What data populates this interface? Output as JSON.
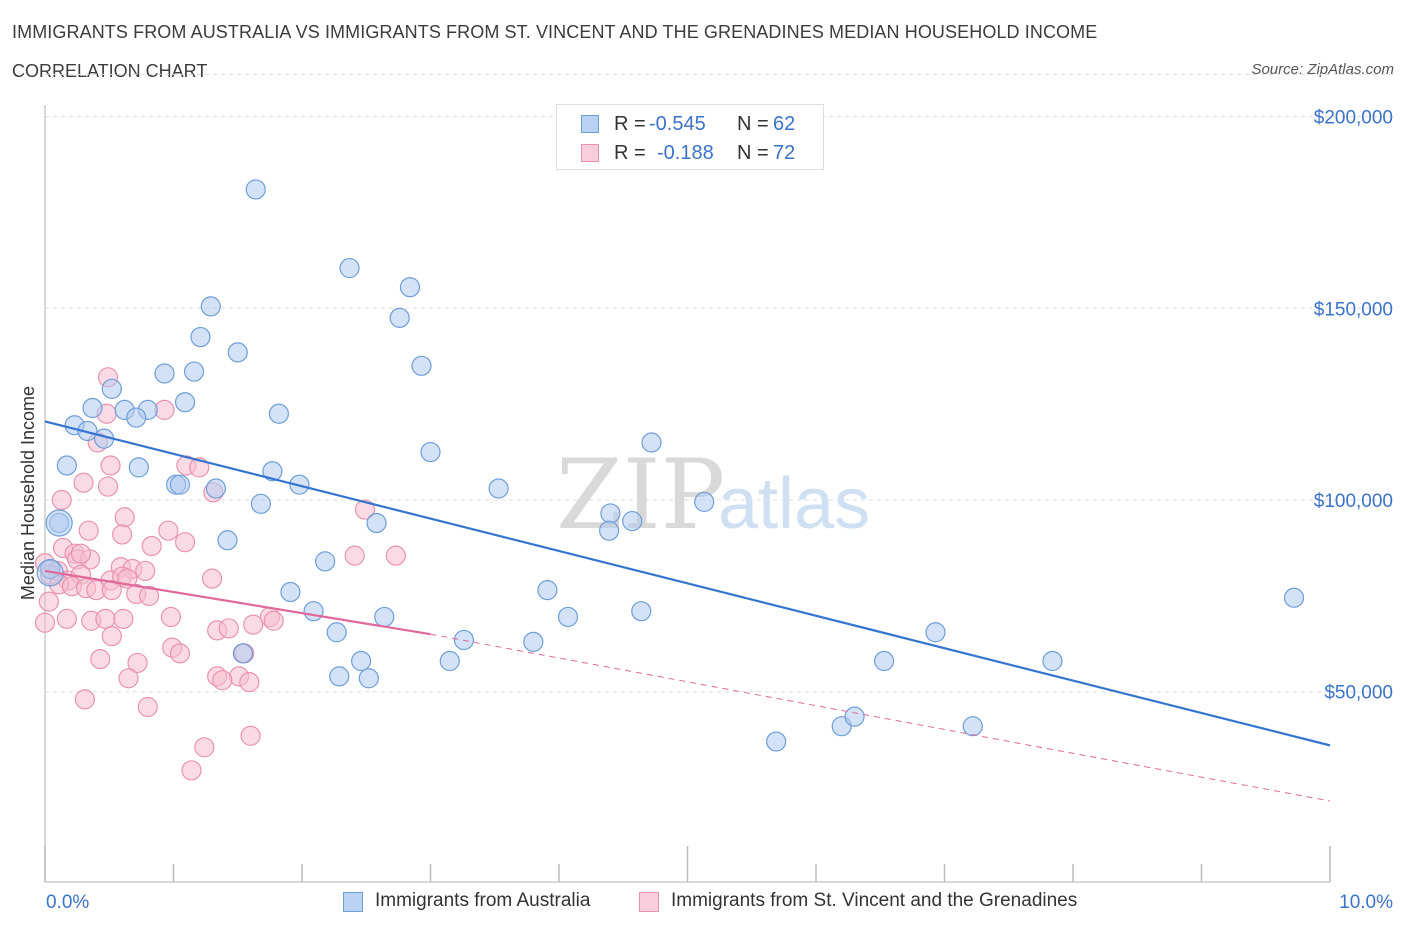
{
  "title": "IMMIGRANTS FROM AUSTRALIA VS IMMIGRANTS FROM ST. VINCENT AND THE GRENADINES MEDIAN HOUSEHOLD INCOME",
  "subtitle": "CORRELATION CHART",
  "source": "Source: ZipAtlas.com",
  "watermark": {
    "zip": "ZIP",
    "atlas": "atlas"
  },
  "legend": {
    "series1": {
      "r_label": "R =",
      "r_value": "-0.545",
      "n_label": "N =",
      "n_value": "62"
    },
    "series2": {
      "r_label": "R =",
      "r_value": "-0.188",
      "n_label": "N =",
      "n_value": "72"
    }
  },
  "bottom_legend": {
    "series1": "Immigrants from Australia",
    "series2": "Immigrants from St. Vincent and the Grenadines"
  },
  "colors": {
    "blue_fill": "#aecbf0",
    "blue_stroke": "#6f9ed8",
    "blue_line": "#3575d0",
    "pink_fill": "#f6bed0",
    "pink_stroke": "#e993b0",
    "pink_line": "#e0699a",
    "tick_text": "#3b73c8",
    "grid": "#dddddd"
  },
  "chart_data": {
    "type": "scatter",
    "ylabel": "Median Household Income",
    "x_tick_labels": [
      "0.0%",
      "10.0%"
    ],
    "y_tick_labels": [
      "$50,000",
      "$100,000",
      "$150,000",
      "$200,000"
    ],
    "xlim": [
      0,
      10
    ],
    "ylim": [
      0,
      200000
    ],
    "y_ticks": [
      50000,
      100000,
      150000,
      200000
    ],
    "grid": true,
    "legend_position": "top-center",
    "series": [
      {
        "name": "Immigrants from Australia",
        "color": "blue",
        "trend": {
          "x": [
            0,
            10
          ],
          "y": [
            120500,
            36000
          ],
          "dashed_extension": false
        },
        "points": [
          [
            1.64,
            181000
          ],
          [
            2.37,
            160500
          ],
          [
            2.84,
            155500
          ],
          [
            2.76,
            147500
          ],
          [
            1.29,
            150500
          ],
          [
            1.21,
            142500
          ],
          [
            1.5,
            138500
          ],
          [
            2.93,
            135000
          ],
          [
            1.16,
            133500
          ],
          [
            0.93,
            133000
          ],
          [
            0.52,
            129000
          ],
          [
            0.37,
            124000
          ],
          [
            0.62,
            123500
          ],
          [
            0.8,
            123500
          ],
          [
            0.71,
            121500
          ],
          [
            1.09,
            125500
          ],
          [
            1.82,
            122500
          ],
          [
            0.23,
            119500
          ],
          [
            0.33,
            118000
          ],
          [
            0.46,
            116000
          ],
          [
            4.72,
            115000
          ],
          [
            3.0,
            112500
          ],
          [
            0.17,
            109000
          ],
          [
            0.73,
            108500
          ],
          [
            1.77,
            107500
          ],
          [
            1.02,
            104000
          ],
          [
            1.05,
            104000
          ],
          [
            1.33,
            103000
          ],
          [
            1.98,
            104000
          ],
          [
            3.53,
            103000
          ],
          [
            1.68,
            99000
          ],
          [
            5.13,
            99500
          ],
          [
            4.4,
            96500
          ],
          [
            4.57,
            94500
          ],
          [
            2.58,
            94000
          ],
          [
            0.11,
            94000
          ],
          [
            4.39,
            92000
          ],
          [
            1.42,
            89500
          ],
          [
            2.18,
            84000
          ],
          [
            0.04,
            82000
          ],
          [
            1.91,
            76000
          ],
          [
            3.91,
            76500
          ],
          [
            9.72,
            74500
          ],
          [
            2.09,
            71000
          ],
          [
            4.07,
            69500
          ],
          [
            2.64,
            69500
          ],
          [
            4.64,
            71000
          ],
          [
            2.27,
            65500
          ],
          [
            6.93,
            65500
          ],
          [
            3.26,
            63500
          ],
          [
            3.8,
            63000
          ],
          [
            1.54,
            60000
          ],
          [
            3.15,
            58000
          ],
          [
            2.46,
            58000
          ],
          [
            6.53,
            58000
          ],
          [
            7.84,
            58000
          ],
          [
            2.29,
            54000
          ],
          [
            2.52,
            53500
          ],
          [
            5.69,
            37000
          ],
          [
            6.2,
            41000
          ],
          [
            6.3,
            43500
          ],
          [
            7.22,
            41000
          ]
        ]
      },
      {
        "name": "Immigrants from St. Vincent and the Grenadines",
        "color": "pink",
        "trend": {
          "x": [
            0,
            3.0
          ],
          "y": [
            81500,
            65000
          ],
          "dashed_to": [
            10,
            21500
          ]
        },
        "points": [
          [
            0.49,
            132000
          ],
          [
            0.93,
            123500
          ],
          [
            0.48,
            122500
          ],
          [
            0.41,
            115000
          ],
          [
            0.51,
            109000
          ],
          [
            1.1,
            109000
          ],
          [
            1.2,
            108500
          ],
          [
            0.3,
            104500
          ],
          [
            0.49,
            103500
          ],
          [
            1.31,
            102000
          ],
          [
            0.13,
            100000
          ],
          [
            2.49,
            97500
          ],
          [
            0.62,
            95500
          ],
          [
            0.34,
            92000
          ],
          [
            0.6,
            91000
          ],
          [
            0.96,
            92000
          ],
          [
            1.09,
            89000
          ],
          [
            0.83,
            88000
          ],
          [
            0.14,
            87500
          ],
          [
            0.23,
            86000
          ],
          [
            2.41,
            85500
          ],
          [
            2.73,
            85500
          ],
          [
            0.25,
            84500
          ],
          [
            0.35,
            84500
          ],
          [
            0.0,
            83500
          ],
          [
            0.1,
            81500
          ],
          [
            0.59,
            82500
          ],
          [
            0.68,
            82000
          ],
          [
            0.78,
            81500
          ],
          [
            0.04,
            80500
          ],
          [
            0.18,
            79000
          ],
          [
            0.28,
            80500
          ],
          [
            0.51,
            79000
          ],
          [
            0.6,
            80000
          ],
          [
            0.64,
            79500
          ],
          [
            1.3,
            79500
          ],
          [
            0.11,
            78000
          ],
          [
            0.21,
            77500
          ],
          [
            0.32,
            77000
          ],
          [
            0.4,
            76500
          ],
          [
            0.52,
            76500
          ],
          [
            0.71,
            75500
          ],
          [
            0.81,
            75000
          ],
          [
            0.03,
            73500
          ],
          [
            0.17,
            69000
          ],
          [
            0.36,
            68500
          ],
          [
            0.47,
            69000
          ],
          [
            0.61,
            69000
          ],
          [
            0.98,
            69500
          ],
          [
            1.75,
            69500
          ],
          [
            1.78,
            68500
          ],
          [
            0.0,
            68000
          ],
          [
            1.34,
            66000
          ],
          [
            0.52,
            64500
          ],
          [
            0.99,
            61500
          ],
          [
            1.05,
            60000
          ],
          [
            1.55,
            60000
          ],
          [
            0.43,
            58500
          ],
          [
            0.72,
            57500
          ],
          [
            1.34,
            54000
          ],
          [
            1.51,
            54000
          ],
          [
            0.65,
            53500
          ],
          [
            1.38,
            53000
          ],
          [
            1.59,
            52500
          ],
          [
            0.31,
            48000
          ],
          [
            0.8,
            46000
          ],
          [
            1.6,
            38500
          ],
          [
            1.24,
            35500
          ],
          [
            1.14,
            29500
          ],
          [
            1.43,
            66500
          ],
          [
            1.62,
            67500
          ],
          [
            0.28,
            86000
          ]
        ]
      }
    ]
  }
}
